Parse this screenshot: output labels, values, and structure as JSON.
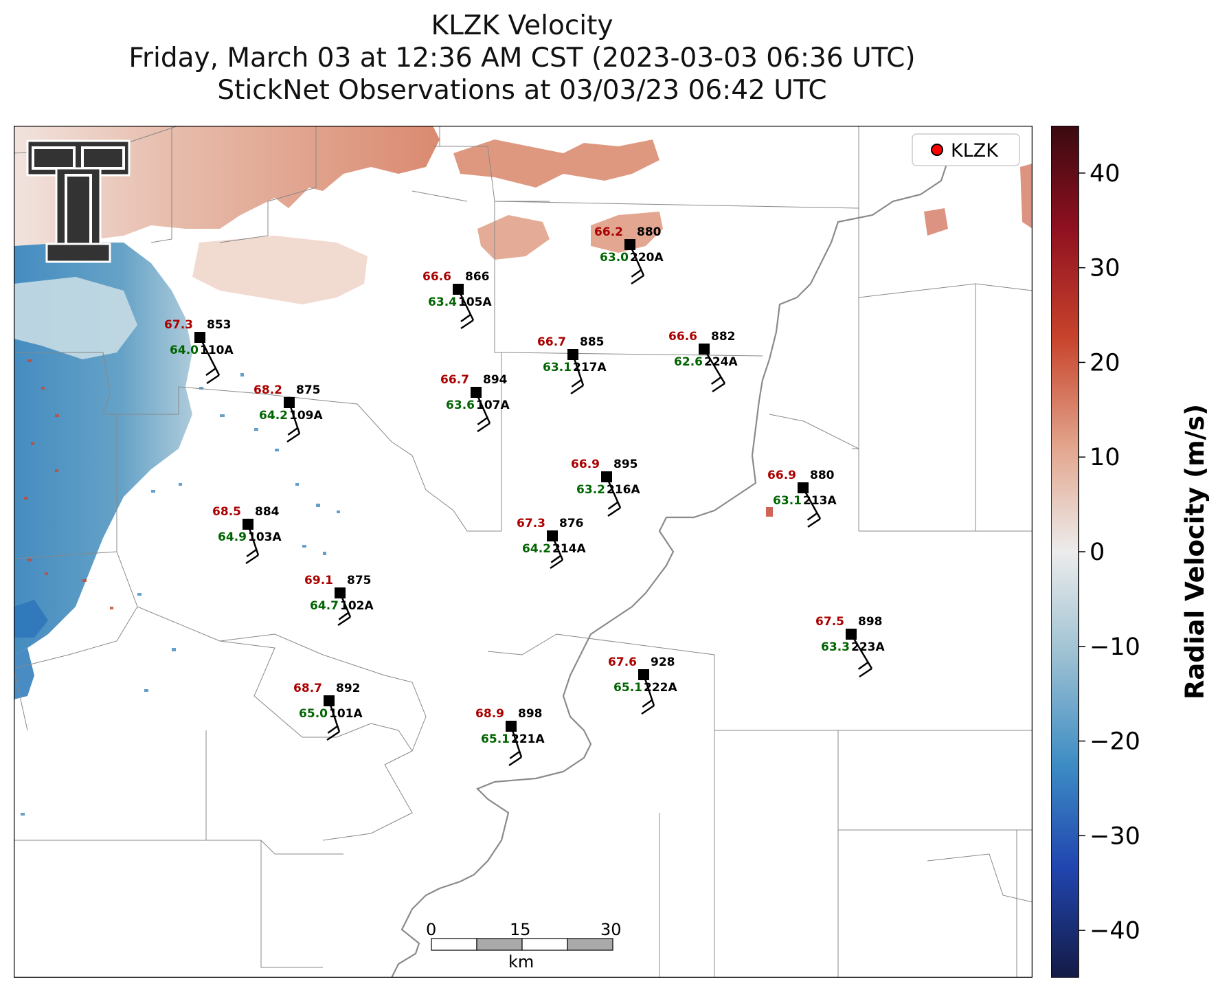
{
  "title": {
    "line1": "KLZK Velocity",
    "line2": "Friday, March 03 at 12:36 AM CST (2023-03-03 06:36 UTC)",
    "line3": "StickNet Observations at 03/03/23 06:42 UTC"
  },
  "legend": {
    "label": "KLZK",
    "marker_color": "#ff0000"
  },
  "logo": {
    "name": "texas-tech-double-t-logo"
  },
  "colorbar": {
    "label": "Radial Velocity (m/s)",
    "min": -45,
    "max": 45,
    "ticks": [
      "40",
      "30",
      "20",
      "10",
      "0",
      "−10",
      "−20",
      "−30",
      "−40"
    ],
    "tick_values": [
      40,
      30,
      20,
      10,
      0,
      -10,
      -20,
      -30,
      -40
    ]
  },
  "scalebar": {
    "labels": [
      "0",
      "15",
      "30"
    ],
    "unit": "km"
  },
  "stations": [
    {
      "id": "220A",
      "temp": "66.2",
      "dew": "63.0",
      "pressure": "880"
    },
    {
      "id": "105A",
      "temp": "66.6",
      "dew": "63.4",
      "pressure": "866"
    },
    {
      "id": "110A",
      "temp": "67.3",
      "dew": "64.0",
      "pressure": "853"
    },
    {
      "id": "217A",
      "temp": "66.7",
      "dew": "63.1",
      "pressure": "885"
    },
    {
      "id": "224A",
      "temp": "66.6",
      "dew": "62.6",
      "pressure": "882"
    },
    {
      "id": "107A",
      "temp": "66.7",
      "dew": "63.6",
      "pressure": "894"
    },
    {
      "id": "109A",
      "temp": "68.2",
      "dew": "64.2",
      "pressure": "875"
    },
    {
      "id": "216A",
      "temp": "66.9",
      "dew": "63.2",
      "pressure": "895"
    },
    {
      "id": "213A",
      "temp": "66.9",
      "dew": "63.1",
      "pressure": "880"
    },
    {
      "id": "103A",
      "temp": "68.5",
      "dew": "64.9",
      "pressure": "884"
    },
    {
      "id": "214A",
      "temp": "67.3",
      "dew": "64.2",
      "pressure": "876"
    },
    {
      "id": "102A",
      "temp": "69.1",
      "dew": "64.7",
      "pressure": "875"
    },
    {
      "id": "223A",
      "temp": "67.5",
      "dew": "63.3",
      "pressure": "898"
    },
    {
      "id": "222A",
      "temp": "67.6",
      "dew": "65.1",
      "pressure": "928"
    },
    {
      "id": "101A",
      "temp": "68.7",
      "dew": "65.0",
      "pressure": "892"
    },
    {
      "id": "221A",
      "temp": "68.9",
      "dew": "65.1",
      "pressure": "898"
    }
  ]
}
